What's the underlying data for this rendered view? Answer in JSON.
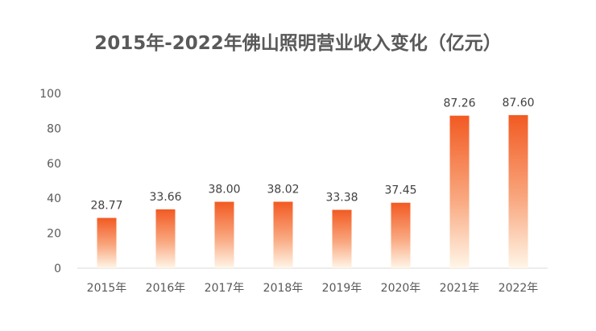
{
  "chart_data": {
    "type": "bar",
    "title": "2015年-2022年佛山照明营业收入变化（亿元）",
    "categories": [
      "2015年",
      "2016年",
      "2017年",
      "2018年",
      "2019年",
      "2020年",
      "2021年",
      "2022年"
    ],
    "values": [
      28.77,
      33.66,
      38.0,
      38.02,
      33.38,
      37.45,
      87.26,
      87.6
    ],
    "data_labels": [
      "28.77",
      "33.66",
      "38.00",
      "38.02",
      "33.38",
      "37.45",
      "87.26",
      "87.60"
    ],
    "yticks": [
      "0",
      "20",
      "40",
      "60",
      "80",
      "100"
    ],
    "ylim": [
      0,
      100
    ],
    "xlabel": "",
    "ylabel": "",
    "grid": false,
    "legend": "none",
    "colors": {
      "bar_top": "#f25a22",
      "bar_bottom": "#fff6e8",
      "axis": "#d9d9d9",
      "text": "#595959"
    }
  }
}
